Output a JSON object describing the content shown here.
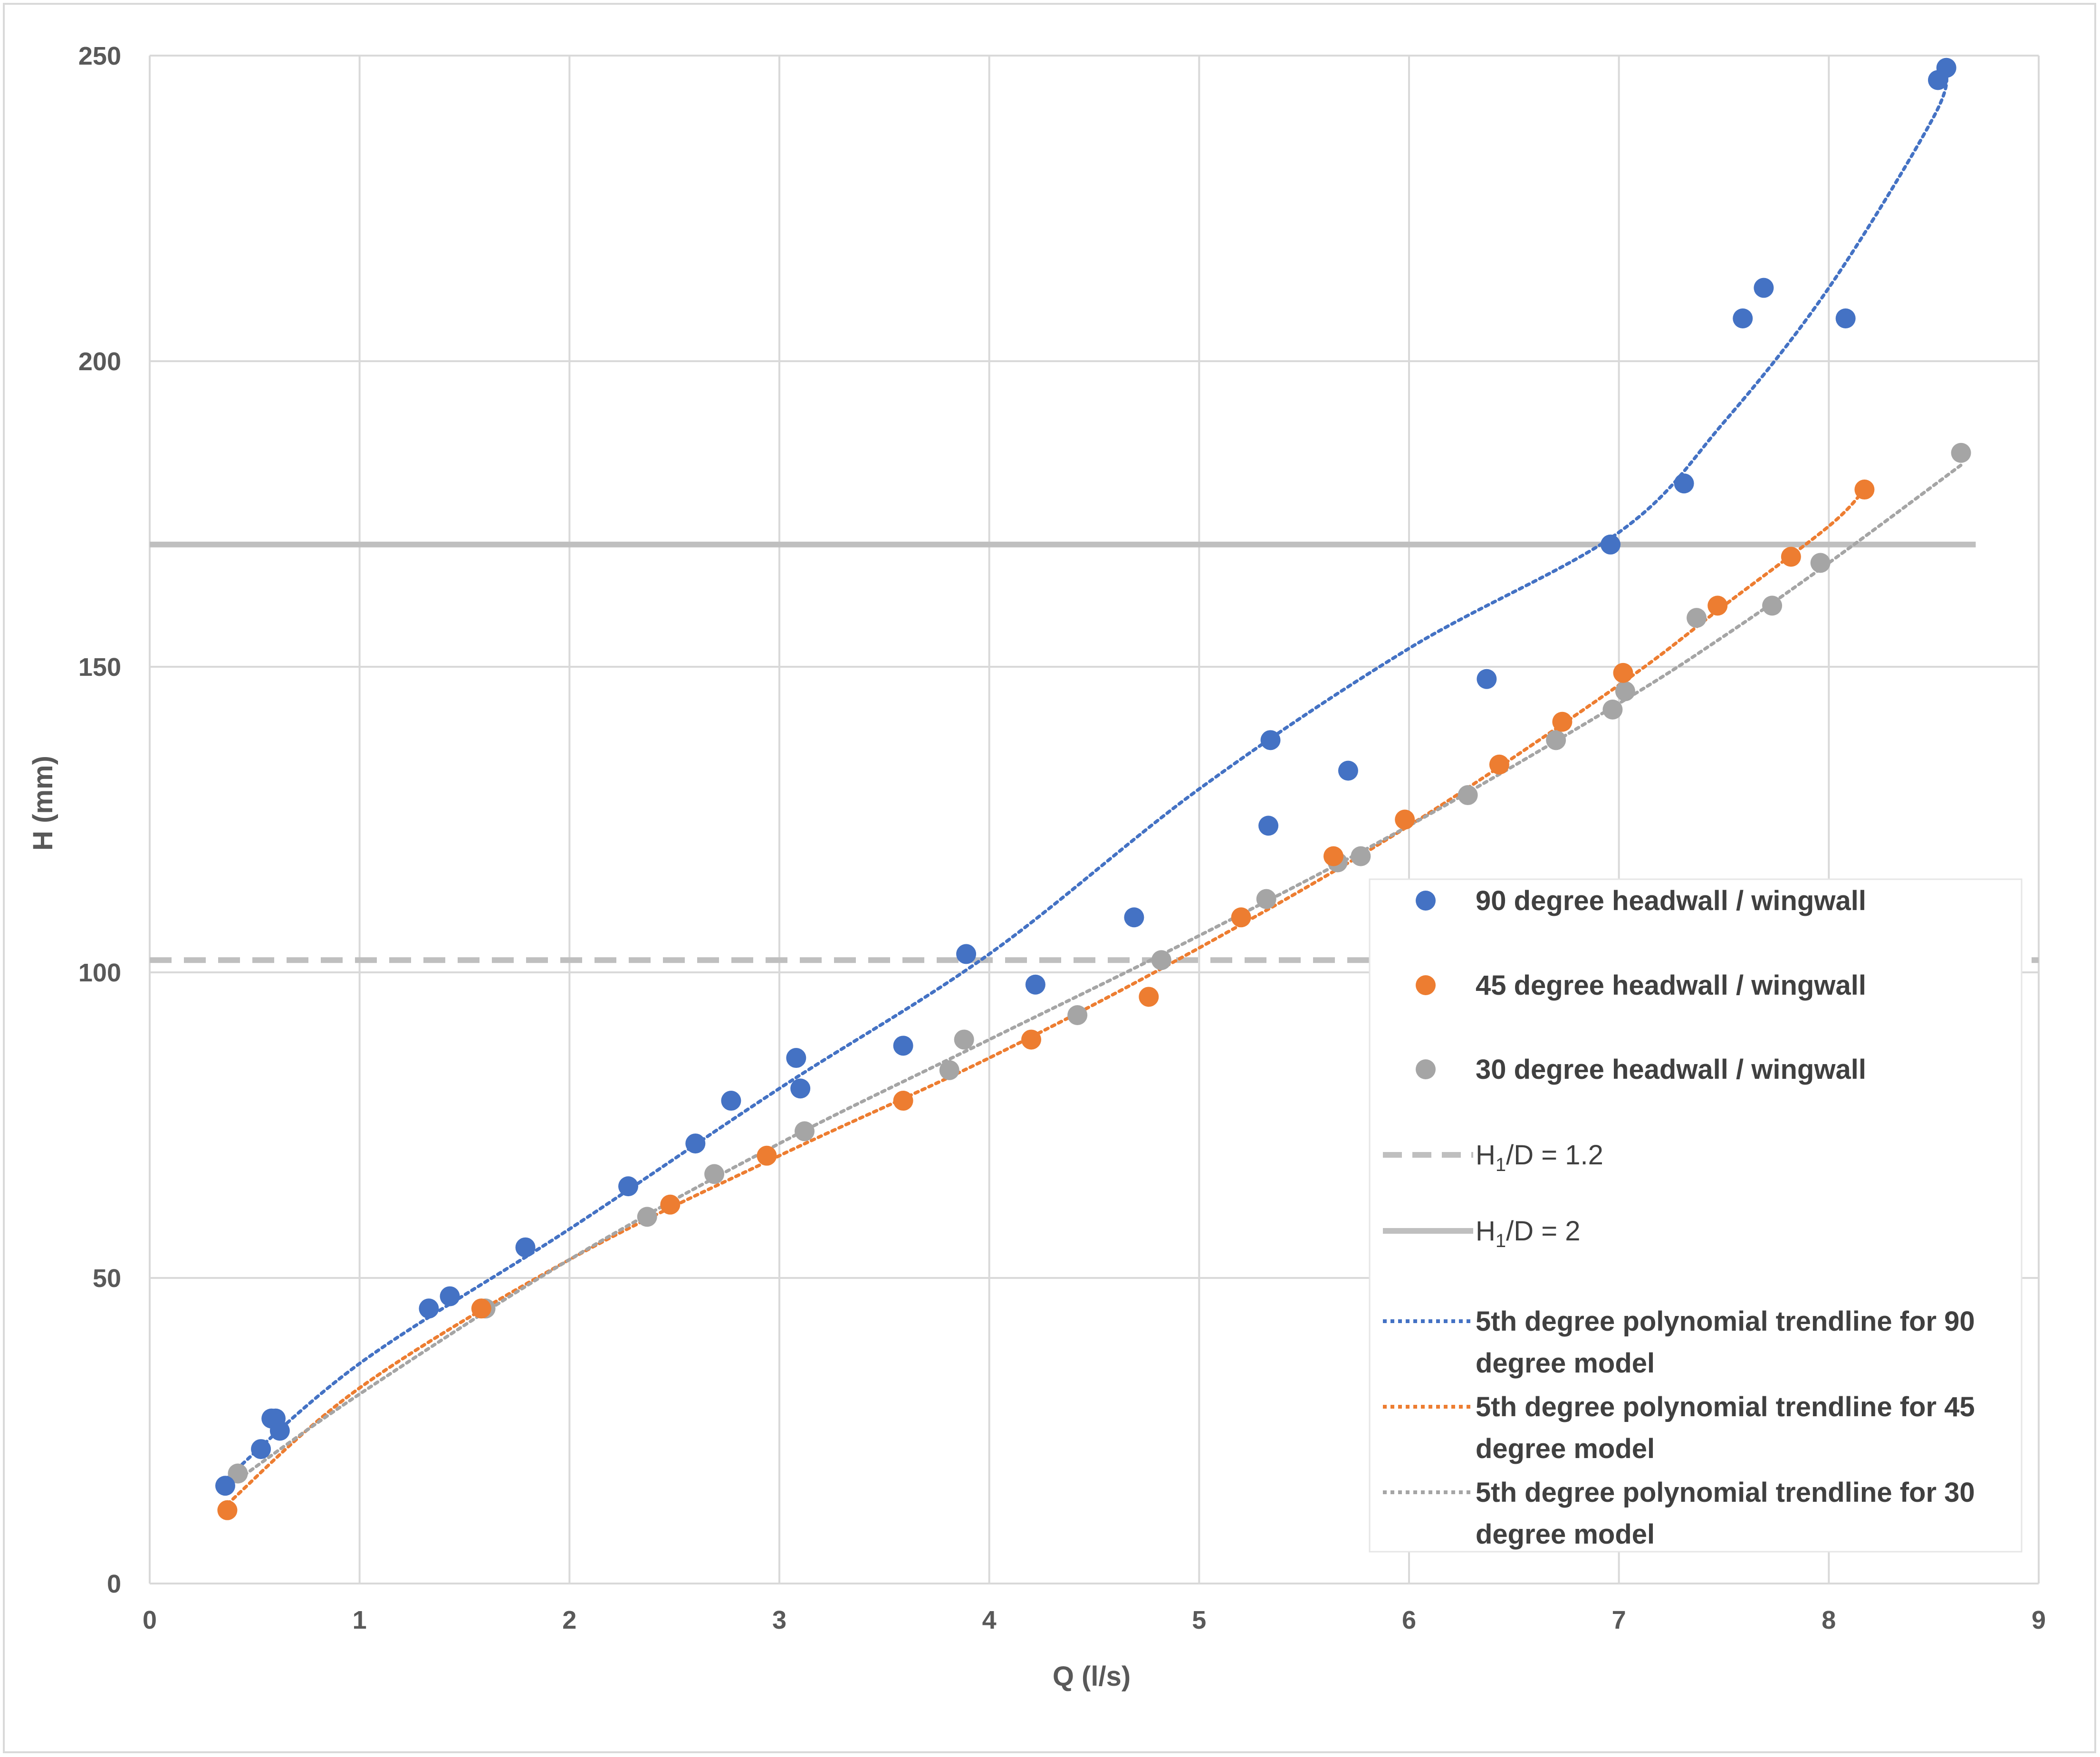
{
  "chart_data": {
    "type": "scatter",
    "xlabel": "Q (l/s)",
    "ylabel": "H (mm)",
    "xlim": [
      0,
      9
    ],
    "ylim": [
      0,
      250
    ],
    "x_ticks": [
      "0",
      "1",
      "2",
      "3",
      "4",
      "5",
      "6",
      "7",
      "8",
      "9"
    ],
    "y_ticks": [
      "0",
      "50",
      "100",
      "150",
      "200",
      "250"
    ],
    "grid": true,
    "legend_position": "right",
    "series": [
      {
        "name": "90 degree headwall / wingwall",
        "kind": "markers",
        "color": "#4472c4",
        "points": [
          [
            0.36,
            16
          ],
          [
            0.53,
            22
          ],
          [
            0.58,
            27
          ],
          [
            0.6,
            27
          ],
          [
            0.62,
            25
          ],
          [
            1.33,
            45
          ],
          [
            1.43,
            47
          ],
          [
            1.79,
            55
          ],
          [
            2.28,
            65
          ],
          [
            2.6,
            72
          ],
          [
            2.77,
            79
          ],
          [
            3.08,
            86
          ],
          [
            3.1,
            81
          ],
          [
            3.59,
            88
          ],
          [
            3.89,
            103
          ],
          [
            4.22,
            98
          ],
          [
            4.69,
            109
          ],
          [
            5.33,
            124
          ],
          [
            5.34,
            138
          ],
          [
            5.71,
            133
          ],
          [
            6.37,
            148
          ],
          [
            6.96,
            170
          ],
          [
            7.31,
            180
          ],
          [
            7.59,
            207
          ],
          [
            7.69,
            212
          ],
          [
            8.08,
            207
          ],
          [
            8.52,
            246
          ],
          [
            8.56,
            248
          ]
        ]
      },
      {
        "name": "45 degree headwall / wingwall",
        "kind": "markers",
        "color": "#ed7d31",
        "points": [
          [
            0.37,
            12
          ],
          [
            1.58,
            45
          ],
          [
            2.48,
            62
          ],
          [
            2.94,
            70
          ],
          [
            3.59,
            79
          ],
          [
            4.2,
            89
          ],
          [
            4.76,
            96
          ],
          [
            5.2,
            109
          ],
          [
            5.64,
            119
          ],
          [
            5.98,
            125
          ],
          [
            6.43,
            134
          ],
          [
            6.73,
            141
          ],
          [
            7.02,
            149
          ],
          [
            7.47,
            160
          ],
          [
            7.82,
            168
          ],
          [
            8.17,
            179
          ]
        ]
      },
      {
        "name": "30 degree headwall / wingwall",
        "kind": "markers",
        "color": "#a5a5a5",
        "points": [
          [
            0.42,
            18
          ],
          [
            1.6,
            45
          ],
          [
            2.37,
            60
          ],
          [
            2.69,
            67
          ],
          [
            3.12,
            74
          ],
          [
            3.81,
            84
          ],
          [
            3.88,
            89
          ],
          [
            4.42,
            93
          ],
          [
            4.82,
            102
          ],
          [
            5.32,
            112
          ],
          [
            5.66,
            118
          ],
          [
            5.77,
            119
          ],
          [
            6.28,
            129
          ],
          [
            6.7,
            138
          ],
          [
            6.97,
            143
          ],
          [
            7.03,
            146
          ],
          [
            7.37,
            158
          ],
          [
            7.73,
            160
          ],
          [
            7.96,
            167
          ],
          [
            8.63,
            185
          ]
        ]
      },
      {
        "name": "H1/D = 1.2",
        "kind": "hline",
        "style": "dashed",
        "color": "#bfbfbf",
        "y": 102,
        "x_range": [
          0,
          9
        ]
      },
      {
        "name": "H1/D = 2",
        "kind": "hline",
        "style": "solid",
        "color": "#bfbfbf",
        "y": 170,
        "x_range": [
          0,
          8.7
        ]
      },
      {
        "name": "5th degree polynomial trendline for 90 degree model",
        "kind": "trendline",
        "style": "dotted",
        "color": "#4472c4",
        "points": [
          [
            0.36,
            17
          ],
          [
            1,
            36
          ],
          [
            2,
            58
          ],
          [
            3,
            81
          ],
          [
            4,
            103
          ],
          [
            5,
            130
          ],
          [
            6,
            153
          ],
          [
            7,
            172
          ],
          [
            7.5,
            190
          ],
          [
            8,
            212
          ],
          [
            8.5,
            240
          ],
          [
            8.56,
            248
          ]
        ]
      },
      {
        "name": "5th degree polynomial trendline for 45 degree model",
        "kind": "trendline",
        "style": "dotted",
        "color": "#ed7d31",
        "points": [
          [
            0.37,
            13
          ],
          [
            1,
            32
          ],
          [
            2,
            53
          ],
          [
            3,
            70
          ],
          [
            4,
            86
          ],
          [
            5,
            104
          ],
          [
            6,
            124
          ],
          [
            7,
            147
          ],
          [
            7.5,
            160
          ],
          [
            8,
            173
          ],
          [
            8.17,
            179
          ]
        ]
      },
      {
        "name": "5th degree polynomial trendline for 30 degree model",
        "kind": "trendline",
        "style": "dotted",
        "color": "#a5a5a5",
        "points": [
          [
            0.42,
            17
          ],
          [
            1,
            31
          ],
          [
            2,
            53
          ],
          [
            3,
            72
          ],
          [
            4,
            89
          ],
          [
            5,
            106
          ],
          [
            6,
            124
          ],
          [
            7,
            144
          ],
          [
            7.5,
            155
          ],
          [
            8,
            167
          ],
          [
            8.63,
            183
          ]
        ]
      }
    ],
    "legend": [
      {
        "label": "90 degree headwall / wingwall",
        "icon": "circle-marker",
        "color": "#4472c4"
      },
      {
        "label": "45 degree headwall / wingwall",
        "icon": "circle-marker",
        "color": "#ed7d31"
      },
      {
        "label": "30 degree headwall / wingwall",
        "icon": "circle-marker",
        "color": "#a5a5a5"
      },
      {
        "label_main": "H",
        "label_sub": "1",
        "label_rest": "/D = 1.2",
        "icon": "dashed-line",
        "color": "#bfbfbf"
      },
      {
        "label_main": "H",
        "label_sub": "1",
        "label_rest": "/D = 2",
        "icon": "solid-line",
        "color": "#bfbfbf"
      },
      {
        "label_line1": "5th degree polynomial trendline for 90",
        "label_line2": "degree model",
        "icon": "dotted-line",
        "color": "#4472c4"
      },
      {
        "label_line1": "5th degree polynomial trendline for 45",
        "label_line2": "degree model",
        "icon": "dotted-line",
        "color": "#ed7d31"
      },
      {
        "label_line1": "5th degree polynomial trendline for 30",
        "label_line2": "degree model",
        "icon": "dotted-line",
        "color": "#a5a5a5"
      }
    ]
  }
}
